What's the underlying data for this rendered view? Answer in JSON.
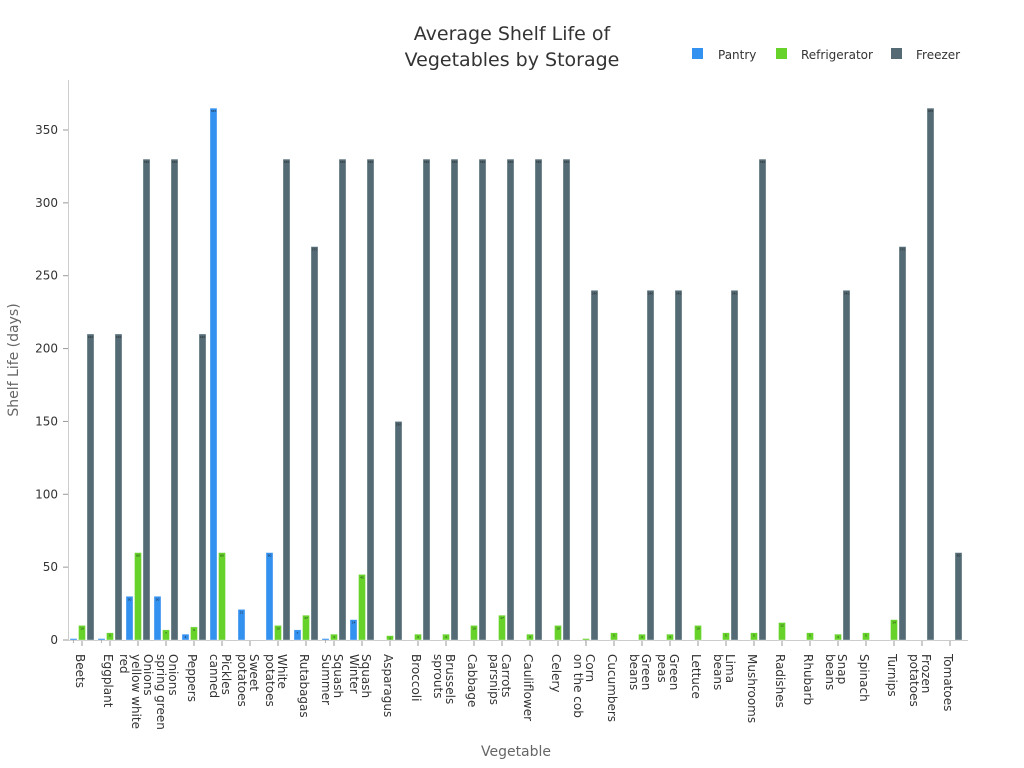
{
  "chart_data": {
    "type": "bar",
    "title_lines": [
      "Average Shelf Life of",
      "Vegetables by Storage"
    ],
    "xlabel": "Vegetable",
    "ylabel": "Shelf Life (days)",
    "ylim": [
      0,
      385
    ],
    "yticks": [
      0,
      50,
      100,
      150,
      200,
      250,
      300,
      350
    ],
    "grid": false,
    "legend_position": "top-right",
    "category_label_lines": [
      [
        "Beets"
      ],
      [
        "Eggplant"
      ],
      [
        "red",
        "yellow white",
        "Onions"
      ],
      [
        "spring green",
        "Onions"
      ],
      [
        "Peppers"
      ],
      [
        "canned",
        "Pickles"
      ],
      [
        "potatoes",
        "Sweet"
      ],
      [
        "potatoes",
        "White"
      ],
      [
        "Rutabagas"
      ],
      [
        "Summer",
        "Squash"
      ],
      [
        "Winter",
        "Squash"
      ],
      [
        "Asparagus"
      ],
      [
        "Broccoli"
      ],
      [
        "sprouts",
        "Brussels"
      ],
      [
        "Cabbage"
      ],
      [
        "parsnips",
        "Carrots"
      ],
      [
        "Cauliflower"
      ],
      [
        "Celery"
      ],
      [
        "on the cob",
        "Corn"
      ],
      [
        "Cucumbers"
      ],
      [
        "beans",
        "Green"
      ],
      [
        "peas",
        "Green"
      ],
      [
        "Lettuce"
      ],
      [
        "beans",
        "Lima"
      ],
      [
        "Mushrooms"
      ],
      [
        "Radishes"
      ],
      [
        "Rhubarb"
      ],
      [
        "beans",
        "Snap"
      ],
      [
        "Spinach"
      ],
      [
        "Turnips"
      ],
      [
        "potatoes",
        "Frozen"
      ],
      [
        "Tomatoes"
      ]
    ],
    "series": [
      {
        "name": "Pantry",
        "color": "#3391f0",
        "values": [
          1,
          1,
          30,
          30,
          4,
          365,
          21,
          60,
          7,
          1,
          14,
          0,
          0,
          0,
          0,
          0,
          0,
          0,
          0,
          0,
          0,
          0,
          0,
          0,
          0,
          0,
          0,
          0,
          0,
          0,
          0,
          0
        ]
      },
      {
        "name": "Refrigerator",
        "color": "#66d22a",
        "values": [
          10,
          5,
          60,
          7,
          9,
          60,
          0,
          10,
          17,
          4,
          45,
          3,
          4,
          4,
          10,
          17,
          4,
          10,
          1,
          5,
          4,
          4,
          10,
          5,
          5,
          12,
          5,
          4,
          5,
          14,
          0,
          0
        ]
      },
      {
        "name": "Freezer",
        "color": "#546b75",
        "values": [
          210,
          210,
          330,
          330,
          210,
          0,
          0,
          330,
          270,
          330,
          330,
          150,
          330,
          330,
          330,
          330,
          330,
          330,
          240,
          0,
          240,
          240,
          0,
          240,
          330,
          0,
          0,
          240,
          0,
          270,
          365,
          60
        ]
      }
    ]
  }
}
